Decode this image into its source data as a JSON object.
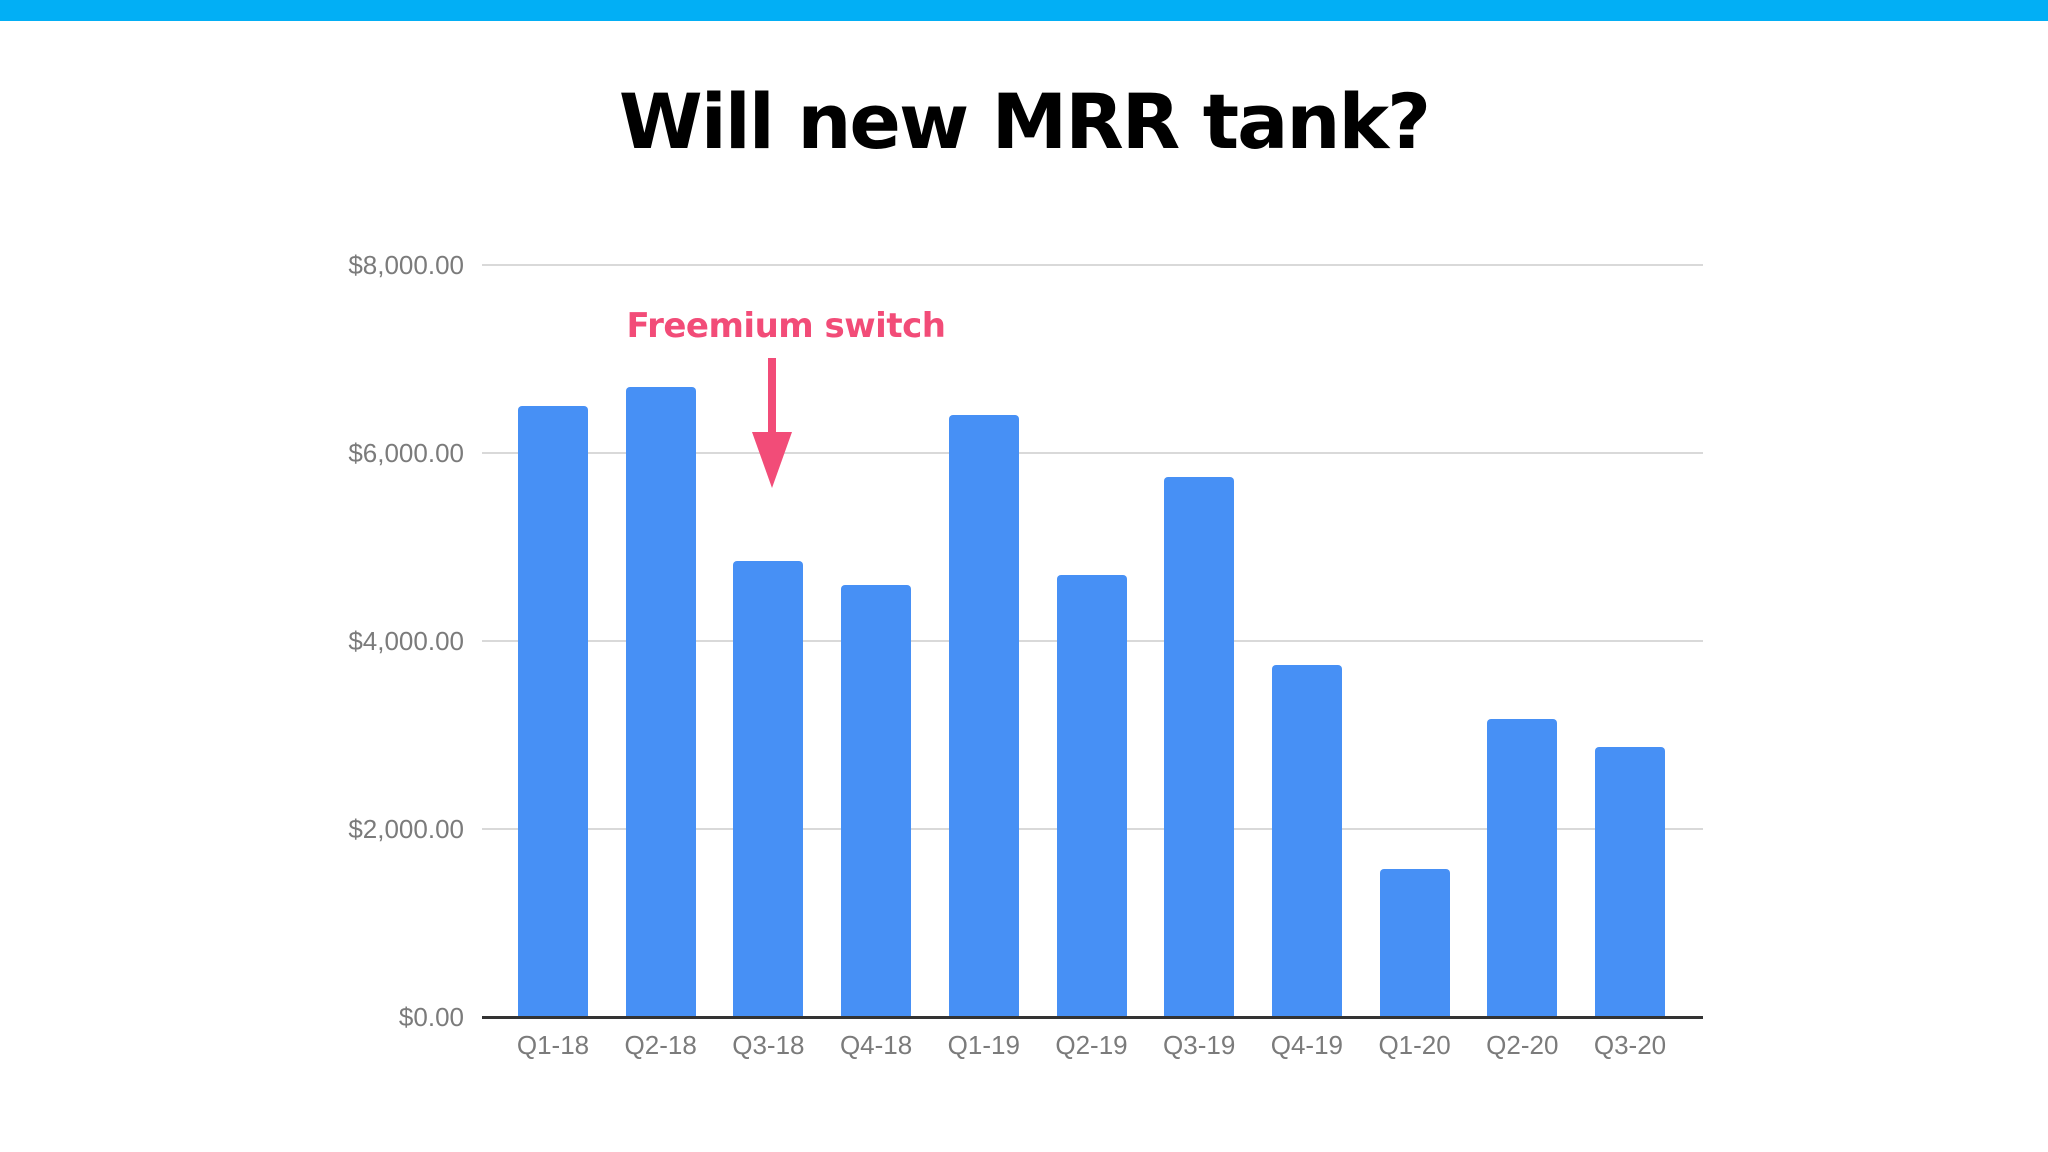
{
  "slide": {
    "title": "Will new MRR tank?",
    "top_band_color": "#02AFF5"
  },
  "annotation": {
    "label": "Freemium switch",
    "color": "#F24C78",
    "points_to": "Q3-18"
  },
  "colors": {
    "bar": "#4790F5",
    "gridline": "#d9d9d9",
    "axis": "#333333",
    "tick_label": "#7b7b7b"
  },
  "axis": {
    "y_ticks": [
      "$8,000.00",
      "$6,000.00",
      "$4,000.00",
      "$2,000.00",
      "$0.00"
    ]
  },
  "chart_data": {
    "type": "bar",
    "title": "Will new MRR tank?",
    "xlabel": "",
    "ylabel": "",
    "categories": [
      "Q1-18",
      "Q2-18",
      "Q3-18",
      "Q4-18",
      "Q1-19",
      "Q2-19",
      "Q3-19",
      "Q4-19",
      "Q1-20",
      "Q2-20",
      "Q3-20"
    ],
    "values": [
      6500,
      6700,
      4850,
      4600,
      6400,
      4700,
      5750,
      3750,
      1575,
      3175,
      2875
    ],
    "ylim": [
      0,
      8000
    ],
    "y_ticks": [
      0,
      2000,
      4000,
      6000,
      8000
    ],
    "y_tick_format": "currency, 2 decimals",
    "grid": true,
    "legend": null,
    "annotations": [
      {
        "text": "Freemium switch",
        "target_category": "Q3-18",
        "type": "arrow-down"
      }
    ]
  }
}
